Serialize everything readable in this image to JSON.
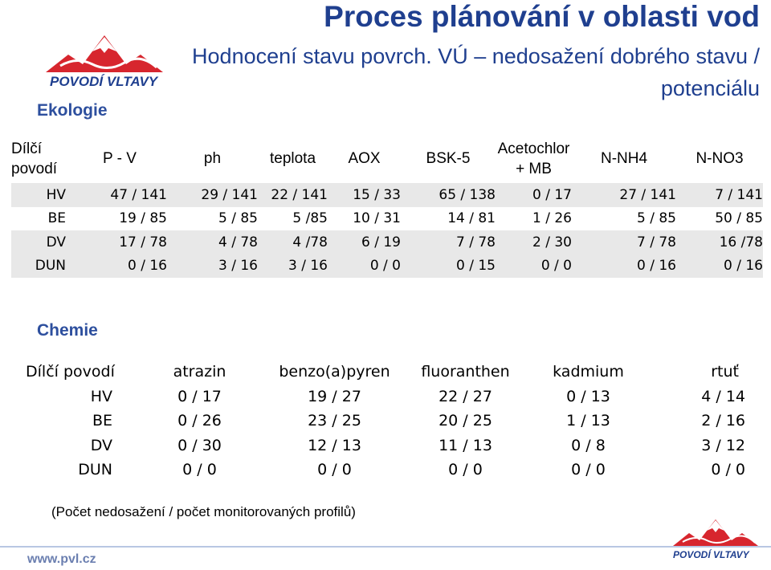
{
  "header": {
    "title": "Proces plánování v oblasti vod",
    "subtitle": "Hodnocení stavu povrch. VÚ – nedosažení dobrého stavu / potenciálu"
  },
  "logo": {
    "name": "POVODÍ VLTAVY"
  },
  "ecology": {
    "label": "Ekologie",
    "header_first": [
      "Dílčí",
      "povodí"
    ],
    "columns": [
      "P - V",
      "ph",
      "teplota",
      "AOX",
      "BSK-5",
      "Acetochlor\n+ MB",
      "N-NH4",
      "N-NO3"
    ],
    "rows": [
      {
        "name": "HV",
        "values": [
          "47 / 141",
          "29 / 141",
          "22 / 141",
          "15 / 33",
          "65 / 138",
          "0 / 17",
          "27 / 141",
          "7 / 141"
        ]
      },
      {
        "name": "BE",
        "values": [
          "19 / 85",
          "5 / 85",
          "5  /85",
          "10 / 31",
          "14 / 81",
          "1 / 26",
          "5 / 85",
          "50 / 85"
        ]
      },
      {
        "name": "DV",
        "values": [
          "17 / 78",
          "4 / 78",
          "4 /78",
          "6 / 19",
          "7 / 78",
          "2 / 30",
          "7 / 78",
          "16 /78"
        ]
      },
      {
        "name": "DUN",
        "values": [
          "0 / 16",
          "3 / 16",
          "3 / 16",
          "0 / 0",
          "0 / 15",
          "0 / 0",
          "0 / 16",
          "0 / 16"
        ]
      }
    ]
  },
  "chemistry": {
    "label": "Chemie",
    "header_first": "Dílčí povodí",
    "columns": [
      "atrazin",
      "benzo(a)pyren",
      "fluoranthen",
      "kadmium",
      "rtuť"
    ],
    "rows": [
      {
        "name": "HV",
        "values": [
          "0 / 17",
          "19 / 27",
          "22 / 27",
          "0 / 13",
          "4 / 14"
        ]
      },
      {
        "name": "BE",
        "values": [
          "0 / 26",
          "23 / 25",
          "20 / 25",
          "1 / 13",
          "2 / 16"
        ]
      },
      {
        "name": "DV",
        "values": [
          "0 / 30",
          "12 / 13",
          "11 / 13",
          "0 / 8",
          "3 / 12"
        ]
      },
      {
        "name": "DUN",
        "values": [
          "0 / 0",
          "0 / 0",
          "0 / 0",
          "0 / 0",
          "0 / 0"
        ]
      }
    ]
  },
  "note": "(Počet nedosažení / počet monitorovaných profilů)",
  "footer": {
    "url": "www.pvl.cz",
    "logo_name": "POVODÍ VLTAVY"
  },
  "colors": {
    "title": "#1f3f8f",
    "label": "#2d4f9e",
    "logo_red": "#d7262e",
    "band": "#e8e8e8"
  }
}
